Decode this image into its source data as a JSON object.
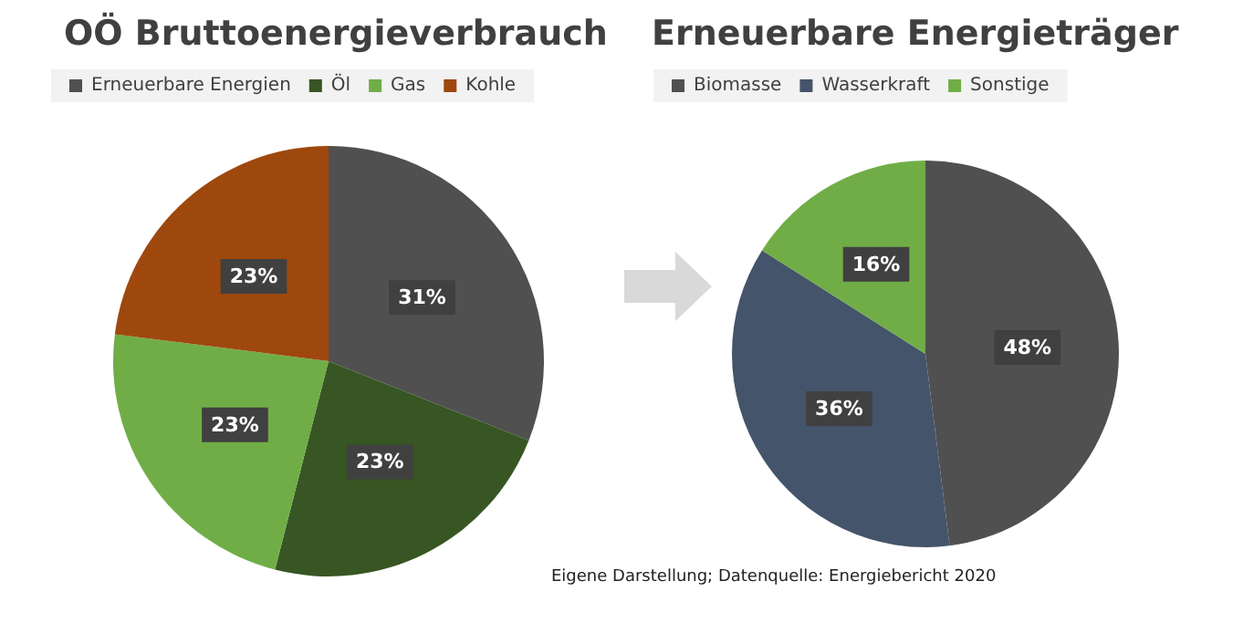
{
  "chart_data": [
    {
      "type": "pie",
      "title": "OÖ Bruttoenergieverbrauch",
      "categories": [
        "Erneuerbare Energien",
        "Öl",
        "Gas",
        "Kohle"
      ],
      "values": [
        31,
        23,
        23,
        23
      ],
      "colors": [
        "#505050",
        "#375623",
        "#70ad47",
        "#9e480e"
      ],
      "value_labels": [
        "31%",
        "23%",
        "23%",
        "23%"
      ],
      "legend": "top"
    },
    {
      "type": "pie",
      "title": "Erneuerbare Energieträger",
      "categories": [
        "Biomasse",
        "Wasserkraft",
        "Sonstige"
      ],
      "values": [
        48,
        36,
        16
      ],
      "colors": [
        "#505050",
        "#44546a",
        "#70ad47"
      ],
      "value_labels": [
        "48%",
        "36%",
        "16%"
      ],
      "legend": "top",
      "annotations": [
        "Eigene Darstellung; Datenquelle: Energiebericht 2020"
      ]
    }
  ]
}
